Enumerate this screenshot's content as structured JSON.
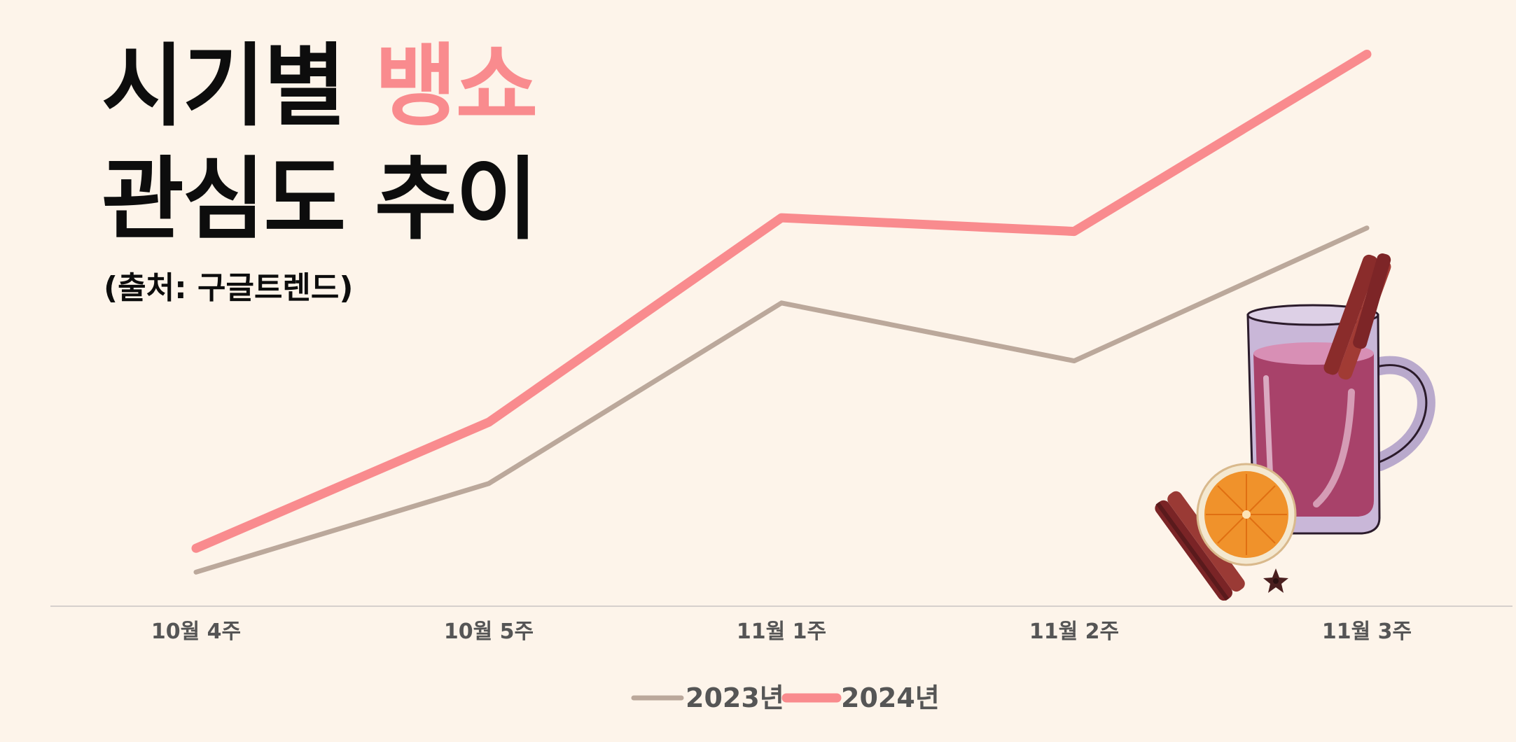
{
  "title": {
    "part1": "시기별 ",
    "accent": "뱅쇼",
    "line2": "관심도 추이"
  },
  "subtitle": "(출처: 구글트렌드)",
  "colors": {
    "background": "#fdf4ea",
    "series_2023": "#bba89b",
    "series_2024": "#f98b8e",
    "axis": "#d6d0cc",
    "title": "#0d0d0d",
    "accent": "#f98b8e"
  },
  "illustration": {
    "icon": "mulled-wine-mug-icon"
  },
  "chart_data": {
    "type": "line",
    "categories": [
      "10월 4주",
      "10월 5주",
      "11월 1주",
      "11월 2주",
      "11월 3주"
    ],
    "series": [
      {
        "name": "2023년",
        "values": [
          10,
          36,
          89,
          72,
          111
        ],
        "color": "#bba89b"
      },
      {
        "name": "2024년",
        "values": [
          17,
          54,
          114,
          110,
          162
        ],
        "color": "#f98b8e"
      }
    ],
    "ylim": [
      0,
      166
    ],
    "grid": false,
    "legend": "bottom-center"
  }
}
